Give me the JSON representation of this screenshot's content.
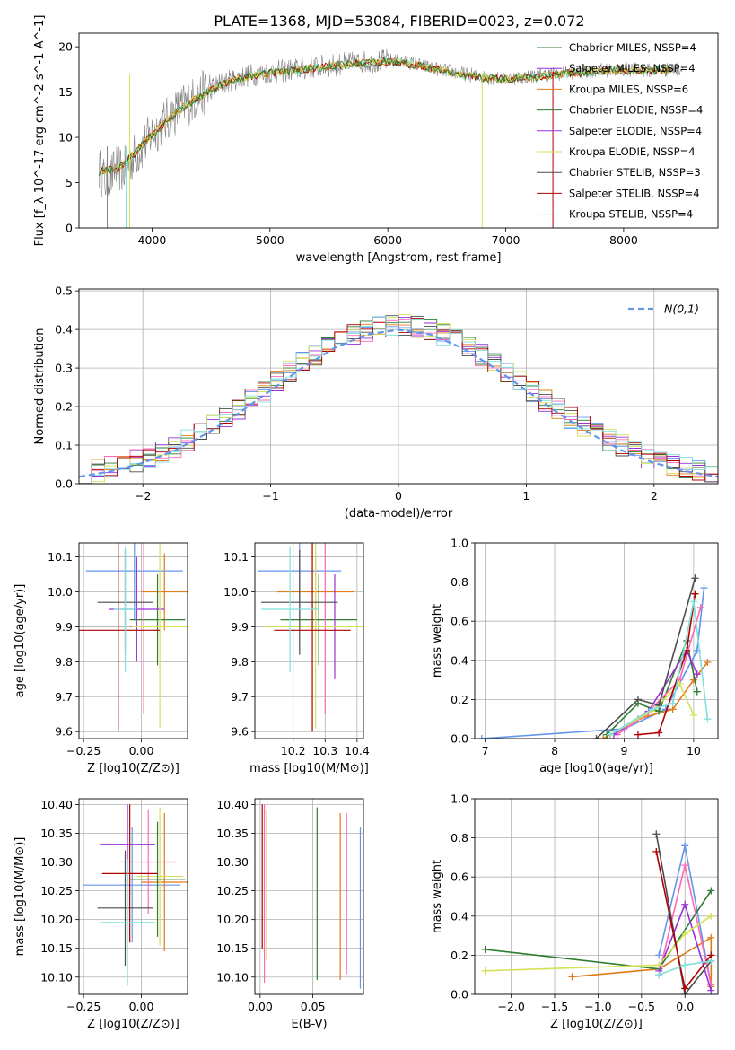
{
  "title": "PLATE=1368, MJD=53084, FIBERID=0023, z=0.072",
  "colors": [
    "#6495ED",
    "#E07B18",
    "#2E7D32",
    "#FF69B4",
    "#9B30D9",
    "#D4E157",
    "#4D4D4D",
    "#AE0000",
    "#7FE0DC",
    "#808080"
  ],
  "chart_data": [
    {
      "id": "spectrum",
      "type": "line",
      "xlabel": "wavelength [Angstrom, rest frame]",
      "ylabel": "Flux [f_λ 10^-17 erg cm^-2 s^-1 A^-1]",
      "xlim": [
        3380,
        8800
      ],
      "ylim": [
        0,
        21.5
      ],
      "xticks": [
        4000,
        5000,
        6000,
        7000,
        8000
      ],
      "yticks": [
        0,
        5,
        10,
        15,
        20
      ],
      "legend_placement": "right",
      "legend": [
        "Chabrier MILES, NSSP=4",
        "Salpeter MILES, NSSP=4",
        "Kroupa MILES, NSSP=6",
        "Chabrier ELODIE, NSSP=4",
        "Salpeter ELODIE, NSSP=4",
        "Kroupa ELODIE, NSSP=4",
        "Chabrier STELIB, NSSP=3",
        "Salpeter STELIB, NSSP=4",
        "Kroupa STELIB, NSSP=4"
      ],
      "series": [
        {
          "name": "data",
          "x": [
            3550,
            3600,
            3650,
            3700,
            3750,
            3800,
            3850,
            3900,
            3950,
            4000,
            4100,
            4200,
            4300,
            4400,
            4500,
            4600,
            4700,
            4800,
            4900,
            5000,
            5100,
            5200,
            5300,
            5400,
            5500,
            5600,
            5700,
            5800,
            5900,
            6000,
            6100,
            6200,
            6300,
            6400,
            6500,
            6600,
            6700,
            6800,
            6900,
            7000,
            7100,
            7200,
            7300,
            7400,
            7500,
            7600,
            7700,
            7800,
            7900,
            8000,
            8100,
            8200,
            8300,
            8400,
            8500
          ],
          "y": [
            6.5,
            5.2,
            5.6,
            6.8,
            6.2,
            7.0,
            8.0,
            8.6,
            9.5,
            10.4,
            11.6,
            12.8,
            13.8,
            14.6,
            15.4,
            16.0,
            16.4,
            16.8,
            17.0,
            17.2,
            17.3,
            17.5,
            17.6,
            17.8,
            17.9,
            18.1,
            18.2,
            18.3,
            18.4,
            18.5,
            18.4,
            18.2,
            17.9,
            17.6,
            17.4,
            17.1,
            16.9,
            16.7,
            16.5,
            16.5,
            16.6,
            16.7,
            16.9,
            17.0,
            17.1,
            17.2,
            17.3,
            17.4,
            17.4,
            17.5,
            17.5,
            17.4,
            17.4,
            17.5,
            17.6
          ]
        },
        {
          "name": "Kroupa STELIB, NSSP=4",
          "x": [
            3550,
            3700,
            3850,
            4000,
            4200,
            4400,
            4600,
            4800,
            5000,
            5200,
            5400,
            5600,
            5800,
            6000,
            6200,
            6400,
            6600,
            6800,
            7000,
            7200,
            7400,
            7600,
            7800,
            8000,
            8200,
            8400
          ],
          "y": [
            6.2,
            6.5,
            8.2,
            10.3,
            12.7,
            14.5,
            15.9,
            16.7,
            17.1,
            17.4,
            17.7,
            18.0,
            18.2,
            18.4,
            18.1,
            17.5,
            17.0,
            16.6,
            16.4,
            16.6,
            16.9,
            17.1,
            17.3,
            17.4,
            17.3,
            17.5
          ]
        }
      ]
    },
    {
      "id": "residuals",
      "type": "line",
      "xlabel": "(data-model)/error",
      "ylabel": "Normed distribution",
      "xlim": [
        -2.5,
        2.5
      ],
      "ylim": [
        0,
        0.505
      ],
      "xticks": [
        -2,
        -1,
        0,
        1,
        2
      ],
      "yticks": [
        0.0,
        0.1,
        0.2,
        0.3,
        0.4,
        0.5
      ],
      "legend_placement": "top-right",
      "legend": [
        "N(0,1)"
      ],
      "series": [
        {
          "name": "N(0,1)",
          "x": [
            -2.5,
            -2.25,
            -2.0,
            -1.75,
            -1.5,
            -1.25,
            -1.0,
            -0.75,
            -0.5,
            -0.25,
            0.0,
            0.25,
            0.5,
            0.75,
            1.0,
            1.25,
            1.5,
            1.75,
            2.0,
            2.25,
            2.5
          ],
          "y": [
            0.018,
            0.032,
            0.054,
            0.086,
            0.13,
            0.183,
            0.242,
            0.301,
            0.352,
            0.387,
            0.399,
            0.387,
            0.352,
            0.301,
            0.242,
            0.183,
            0.13,
            0.086,
            0.054,
            0.032,
            0.018
          ]
        }
      ]
    },
    {
      "id": "age-vs-z",
      "type": "scatter",
      "xlabel": "Z [log10(Z/Z⊙)]",
      "ylabel": "age [log10(age/yr)]",
      "xlim": [
        -0.27,
        0.2
      ],
      "ylim": [
        9.58,
        10.14
      ],
      "xticks": [
        -0.25,
        0.0
      ],
      "yticks": [
        9.6,
        9.7,
        9.8,
        9.9,
        10.0,
        10.1
      ],
      "points": [
        {
          "x": -0.03,
          "y": 10.06,
          "xerr": 0.21,
          "yerr": 0.14
        },
        {
          "x": 0.1,
          "y": 10.0,
          "xerr": 0.1,
          "yerr": 0.11
        },
        {
          "x": 0.07,
          "y": 9.92,
          "xerr": 0.12,
          "yerr": 0.13
        },
        {
          "x": 0.01,
          "y": 9.9,
          "xerr": 0.06,
          "yerr": 0.25
        },
        {
          "x": -0.02,
          "y": 9.95,
          "xerr": 0.12,
          "yerr": 0.15
        },
        {
          "x": 0.08,
          "y": 9.9,
          "xerr": 0.12,
          "yerr": 0.29
        },
        {
          "x": -0.07,
          "y": 9.97,
          "xerr": 0.12,
          "yerr": 0.15
        },
        {
          "x": -0.1,
          "y": 9.89,
          "xerr": 0.18,
          "yerr": 0.29
        },
        {
          "x": -0.07,
          "y": 9.95,
          "xerr": 0.05,
          "yerr": 0.18
        }
      ]
    },
    {
      "id": "age-vs-mass",
      "type": "scatter",
      "xlabel": "mass [log10(M/M⊙)]",
      "ylabel": "",
      "xlim": [
        10.08,
        10.42
      ],
      "ylim": [
        9.58,
        10.14
      ],
      "xticks": [
        10.2,
        10.3,
        10.4
      ],
      "yticks": [
        9.6,
        9.7,
        9.8,
        9.9,
        10.0,
        10.1
      ],
      "points": [
        {
          "x": 10.22,
          "y": 10.06,
          "xerr": 0.13,
          "yerr": 0.14
        },
        {
          "x": 10.27,
          "y": 10.0,
          "xerr": 0.12,
          "yerr": 0.11
        },
        {
          "x": 10.28,
          "y": 9.92,
          "xerr": 0.12,
          "yerr": 0.13
        },
        {
          "x": 10.3,
          "y": 9.9,
          "xerr": 0.03,
          "yerr": 0.25
        },
        {
          "x": 10.33,
          "y": 9.9,
          "xerr": 0.07,
          "yerr": 0.15
        },
        {
          "x": 10.27,
          "y": 9.9,
          "xerr": 0.16,
          "yerr": 0.29
        },
        {
          "x": 10.22,
          "y": 9.97,
          "xerr": 0.12,
          "yerr": 0.15
        },
        {
          "x": 10.26,
          "y": 9.89,
          "xerr": 0.12,
          "yerr": 0.29
        },
        {
          "x": 10.19,
          "y": 9.95,
          "xerr": 0.09,
          "yerr": 0.18
        }
      ]
    },
    {
      "id": "weight-vs-age",
      "type": "line",
      "xlabel": "age [log10(age/yr)]",
      "ylabel": "mass weight",
      "xlim": [
        6.85,
        10.35
      ],
      "ylim": [
        0,
        1.0
      ],
      "xticks": [
        7,
        8,
        9,
        10
      ],
      "yticks": [
        0.0,
        0.2,
        0.4,
        0.6,
        0.8,
        1.0
      ],
      "series": [
        {
          "x": [
            6.95,
            9.0,
            9.6,
            10.05,
            10.15
          ],
          "y": [
            0.0,
            0.05,
            0.15,
            0.45,
            0.77
          ]
        },
        {
          "x": 8.8,
          "y": 0
        },
        {
          "x": [
            8.7,
            9.2,
            9.7,
            10.0,
            10.2
          ],
          "y": [
            0.0,
            0.1,
            0.15,
            0.3,
            0.39
          ]
        },
        {
          "x": [
            8.75,
            9.2,
            9.5,
            9.9,
            10.05
          ],
          "y": [
            0.02,
            0.18,
            0.14,
            0.5,
            0.24
          ]
        },
        {
          "x": [
            8.9,
            9.3,
            9.8,
            10.1
          ],
          "y": [
            0.02,
            0.12,
            0.3,
            0.67
          ]
        },
        {
          "x": [
            8.85,
            9.35,
            9.9,
            10.05
          ],
          "y": [
            0.02,
            0.14,
            0.45,
            0.33
          ]
        },
        {
          "x": [
            8.8,
            9.4,
            9.8,
            10.0
          ],
          "y": [
            0.02,
            0.14,
            0.28,
            0.12
          ]
        },
        {
          "x": [
            8.6,
            9.2,
            9.5,
            10.02
          ],
          "y": [
            0.0,
            0.2,
            0.17,
            0.82
          ]
        },
        {
          "x": [
            9.2,
            9.5,
            9.9,
            10.02
          ],
          "y": [
            0.02,
            0.03,
            0.45,
            0.74
          ]
        },
        {
          "x": [
            8.8,
            9.4,
            9.7,
            10.0,
            10.2
          ],
          "y": [
            0.02,
            0.15,
            0.18,
            0.7,
            0.1
          ]
        }
      ]
    },
    {
      "id": "mass-vs-z",
      "type": "scatter",
      "xlabel": "Z [log10(Z/Z⊙)]",
      "ylabel": "mass [log10(M/M⊙)]",
      "xlim": [
        -0.27,
        0.2
      ],
      "ylim": [
        10.07,
        10.41
      ],
      "xticks": [
        -0.25,
        0.0
      ],
      "yticks": [
        10.1,
        10.15,
        10.2,
        10.25,
        10.3,
        10.35,
        10.4
      ],
      "points": [
        {
          "x": -0.04,
          "y": 10.26,
          "xerr": 0.21,
          "yerr": 0.1
        },
        {
          "x": 0.1,
          "y": 10.265,
          "xerr": 0.1,
          "yerr": 0.12
        },
        {
          "x": 0.08,
          "y": 10.275,
          "xerr": 0.1,
          "yerr": 0.12
        },
        {
          "x": 0.03,
          "y": 10.3,
          "xerr": 0.12,
          "yerr": 0.09
        },
        {
          "x": -0.06,
          "y": 10.33,
          "xerr": 0.12,
          "yerr": 0.07
        },
        {
          "x": 0.07,
          "y": 10.27,
          "xerr": 0.12,
          "yerr": 0.1
        },
        {
          "x": -0.07,
          "y": 10.22,
          "xerr": 0.12,
          "yerr": 0.1
        },
        {
          "x": -0.05,
          "y": 10.28,
          "xerr": 0.12,
          "yerr": 0.12
        },
        {
          "x": -0.06,
          "y": 10.195,
          "xerr": 0.12,
          "yerr": 0.11
        }
      ]
    },
    {
      "id": "mass-vs-ebv",
      "type": "scatter",
      "xlabel": "E(B-V)",
      "ylabel": "",
      "xlim": [
        -0.005,
        0.098
      ],
      "ylim": [
        10.07,
        10.41
      ],
      "xticks": [
        0.0,
        0.05
      ],
      "yticks": [
        10.1,
        10.15,
        10.2,
        10.25,
        10.3,
        10.35,
        10.4
      ],
      "points": [
        {
          "x": 0.002,
          "y": 10.275,
          "xerr": 0,
          "yerr": 0.125
        },
        {
          "x": 0.004,
          "y": 10.245,
          "xerr": 0,
          "yerr": 0.155
        },
        {
          "x": 0.006,
          "y": 10.26,
          "xerr": 0,
          "yerr": 0.13
        },
        {
          "x": 0.054,
          "y": 10.245,
          "xerr": 0,
          "yerr": 0.15
        },
        {
          "x": 0.076,
          "y": 10.24,
          "xerr": 0,
          "yerr": 0.145
        },
        {
          "x": 0.082,
          "y": 10.245,
          "xerr": 0,
          "yerr": 0.14
        },
        {
          "x": 0.095,
          "y": 10.22,
          "xerr": 0,
          "yerr": 0.14
        }
      ]
    },
    {
      "id": "weight-vs-z",
      "type": "line",
      "xlabel": "Z [log10(Z/Z⊙)]",
      "ylabel": "mass weight",
      "xlim": [
        -2.42,
        0.38
      ],
      "ylim": [
        0,
        1.0
      ],
      "xticks": [
        -2.0,
        -1.5,
        -1.0,
        -0.5,
        0.0
      ],
      "yticks": [
        0.0,
        0.2,
        0.4,
        0.6,
        0.8,
        1.0
      ],
      "series": [
        {
          "x": [
            -0.3,
            0.0,
            0.3
          ],
          "y": [
            0.2,
            0.76,
            0.05
          ]
        },
        {
          "x": [
            -1.3,
            -0.3,
            0.3,
            0.3
          ],
          "y": [
            0.09,
            0.13,
            0.29,
            0.04
          ]
        },
        {
          "x": [
            -2.3,
            -0.3,
            0.3
          ],
          "y": [
            0.23,
            0.13,
            0.53
          ]
        },
        {
          "x": [
            -0.3,
            0.0,
            0.3
          ],
          "y": [
            0.1,
            0.66,
            0.05
          ]
        },
        {
          "x": [
            -0.3,
            0.0,
            0.3
          ],
          "y": [
            0.12,
            0.46,
            0.02
          ]
        },
        {
          "x": [
            -2.3,
            -0.3,
            0.0,
            0.3
          ],
          "y": [
            0.12,
            0.15,
            0.31,
            0.4
          ]
        },
        {
          "x": [
            -0.33,
            0.0,
            0.3
          ],
          "y": [
            0.82,
            0.0,
            0.17
          ]
        },
        {
          "x": [
            -0.33,
            0.0,
            0.3
          ],
          "y": [
            0.73,
            0.03,
            0.2
          ]
        },
        {
          "x": [
            -0.3,
            0.0,
            0.3
          ],
          "y": [
            0.1,
            0.15,
            0.17
          ]
        }
      ]
    }
  ]
}
